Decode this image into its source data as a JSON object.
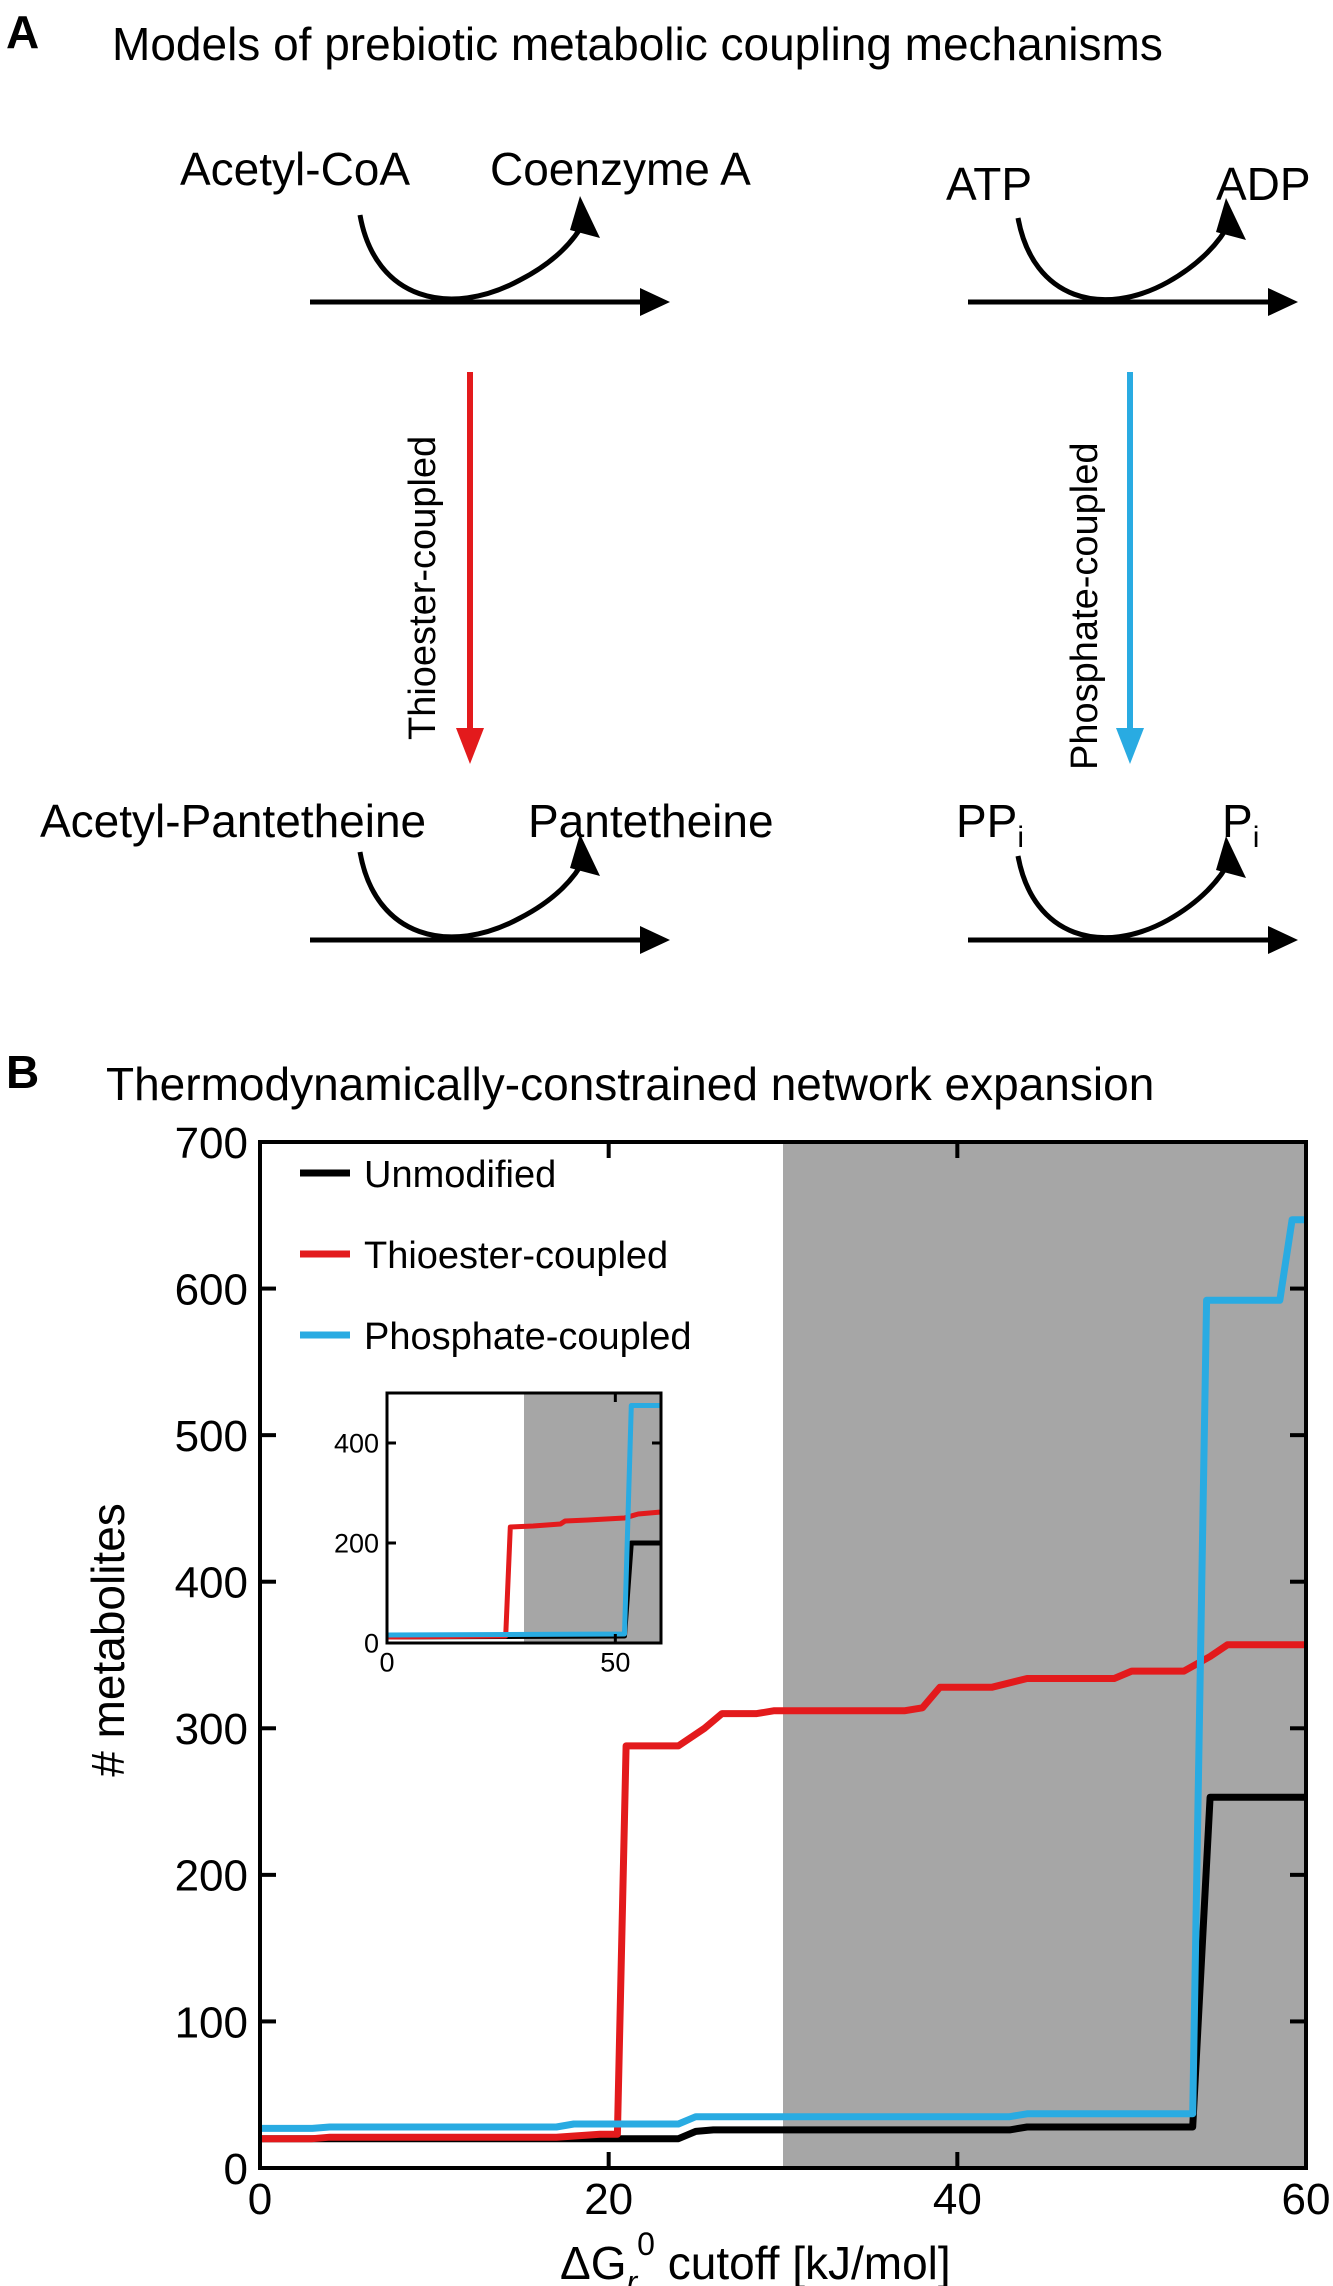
{
  "panel_a": {
    "label": "A",
    "title": "Models of prebiotic metabolic coupling mechanisms",
    "left_top": {
      "reactant": "Acetyl-CoA",
      "product": "Coenzyme A"
    },
    "left_bottom": {
      "reactant": "Acetyl-Pantetheine",
      "product": "Pantetheine"
    },
    "left_arrow_label": "Thioester-coupled",
    "right_top": {
      "reactant": "ATP",
      "product": "ADP"
    },
    "right_bottom": {
      "reactant_main": "PP",
      "reactant_sub": "i",
      "product_main": "P",
      "product_sub": "i"
    },
    "right_arrow_label": "Phosphate-coupled",
    "colors": {
      "thioester": "#e31a1c",
      "phosphate": "#29abe2"
    }
  },
  "panel_b": {
    "label": "B",
    "title": "Thermodynamically-constrained network expansion",
    "ylabel": "# metabolites",
    "xlabel_main": "ΔG",
    "xlabel_sub": "r",
    "xlabel_sup": "0",
    "xlabel_rest": " cutoff [kJ/mol]"
  },
  "chart_data": [
    {
      "type": "line",
      "title": "Thermodynamically-constrained network expansion",
      "xlabel": "ΔGr0 cutoff [kJ/mol]",
      "ylabel": "# metabolites",
      "xlim": [
        0,
        60
      ],
      "ylim": [
        0,
        700
      ],
      "xticks": [
        0,
        20,
        40,
        60
      ],
      "yticks": [
        0,
        100,
        200,
        300,
        400,
        500,
        600,
        700
      ],
      "shaded_region": [
        30,
        60
      ],
      "legend_placement": "top-left",
      "grid": false,
      "series": [
        {
          "name": "Unmodified",
          "color": "#000000",
          "points": [
            [
              0,
              20
            ],
            [
              24,
              20
            ],
            [
              25,
              25
            ],
            [
              26,
              26
            ],
            [
              43,
              26
            ],
            [
              44,
              28
            ],
            [
              53.5,
              28
            ],
            [
              54.5,
              253
            ],
            [
              60,
              253
            ]
          ]
        },
        {
          "name": "Thioester-coupled",
          "color": "#e31a1c",
          "points": [
            [
              0,
              20
            ],
            [
              3,
              20
            ],
            [
              4,
              21
            ],
            [
              17,
              21
            ],
            [
              19.5,
              23
            ],
            [
              20.5,
              23
            ],
            [
              21,
              288
            ],
            [
              24,
              288
            ],
            [
              25.5,
              300
            ],
            [
              26.5,
              310
            ],
            [
              28.5,
              310
            ],
            [
              29.5,
              312
            ],
            [
              37,
              312
            ],
            [
              38,
              314
            ],
            [
              39,
              328
            ],
            [
              42,
              328
            ],
            [
              44,
              334
            ],
            [
              49,
              334
            ],
            [
              50,
              339
            ],
            [
              53,
              339
            ],
            [
              54.5,
              349
            ],
            [
              55.5,
              357
            ],
            [
              60,
              357
            ]
          ]
        },
        {
          "name": "Phosphate-coupled",
          "color": "#29abe2",
          "points": [
            [
              0,
              27
            ],
            [
              3,
              27
            ],
            [
              4,
              28
            ],
            [
              17,
              28
            ],
            [
              18,
              30
            ],
            [
              24,
              30
            ],
            [
              25,
              35
            ],
            [
              43,
              35
            ],
            [
              44,
              37
            ],
            [
              53.5,
              37
            ],
            [
              54.3,
              592
            ],
            [
              58.5,
              592
            ],
            [
              59.2,
              647
            ],
            [
              60,
              647
            ]
          ]
        }
      ]
    },
    {
      "type": "line",
      "title": "",
      "xlim": [
        0,
        60
      ],
      "ylim": [
        0,
        500
      ],
      "xticks": [
        0,
        50
      ],
      "yticks": [
        0,
        200,
        400
      ],
      "shaded_region": [
        30,
        60
      ],
      "series": [
        {
          "name": "",
          "color": "#000000",
          "points": [
            [
              0,
              12
            ],
            [
              52,
              14
            ],
            [
              53.5,
              200
            ],
            [
              60,
              200
            ]
          ]
        },
        {
          "name": "",
          "color": "#e31a1c",
          "points": [
            [
              0,
              12
            ],
            [
              26,
              14
            ],
            [
              27,
              232
            ],
            [
              32,
              234
            ],
            [
              38,
              238
            ],
            [
              39,
              244
            ],
            [
              44,
              246
            ],
            [
              52,
              250
            ],
            [
              55,
              258
            ],
            [
              60,
              262
            ]
          ]
        },
        {
          "name": "",
          "color": "#29abe2",
          "points": [
            [
              0,
              16
            ],
            [
              52,
              18
            ],
            [
              53.5,
              475
            ],
            [
              60,
              475
            ]
          ]
        }
      ]
    }
  ]
}
